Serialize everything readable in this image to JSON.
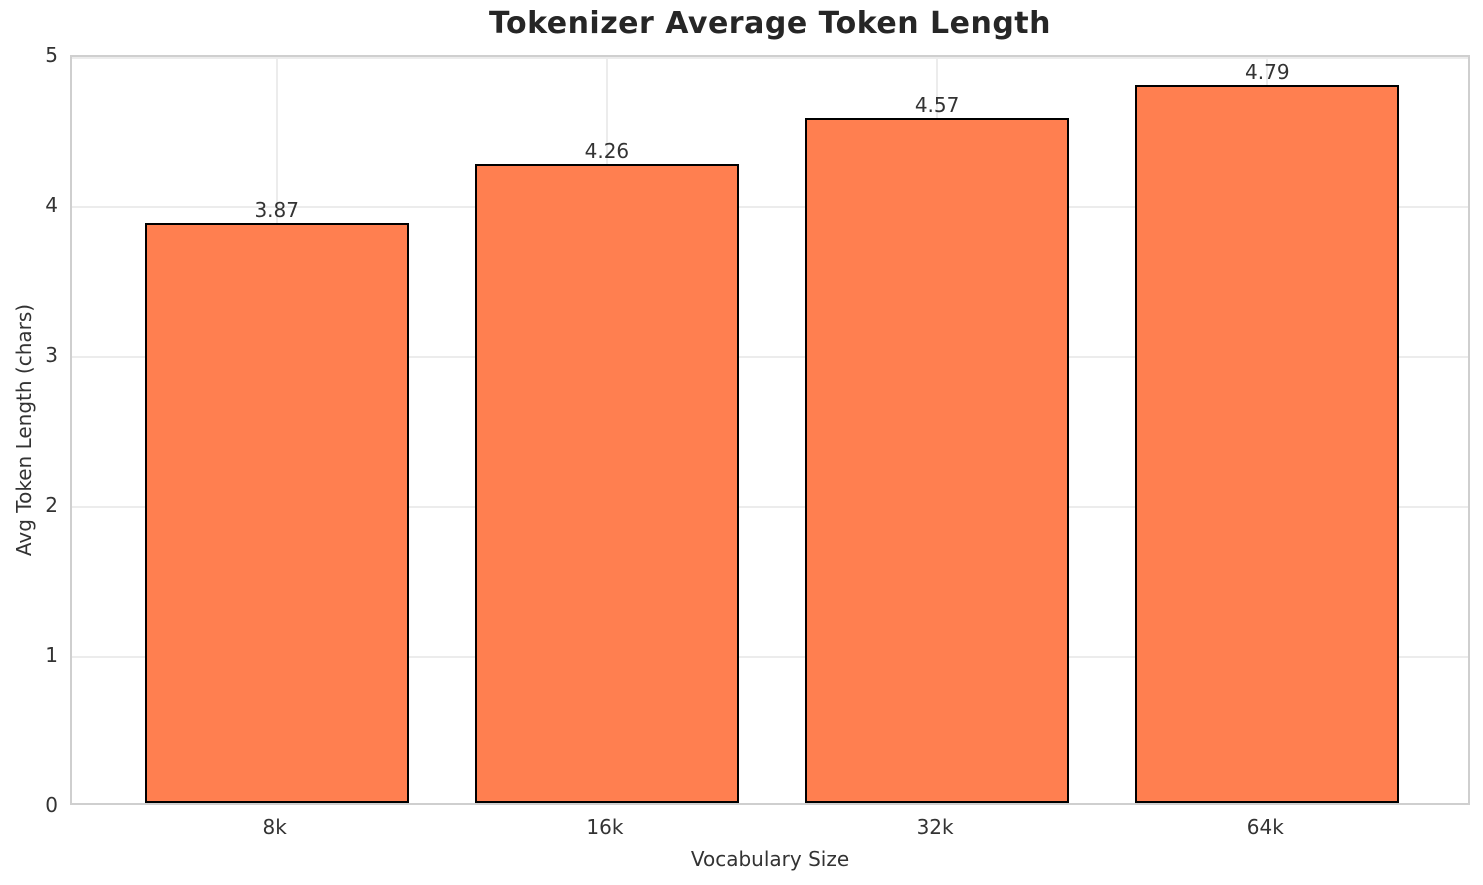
{
  "chart_data": {
    "type": "bar",
    "title": "Tokenizer Average Token Length",
    "xlabel": "Vocabulary Size",
    "ylabel": "Avg Token Length (chars)",
    "categories": [
      "8k",
      "16k",
      "32k",
      "64k"
    ],
    "values": [
      3.87,
      4.26,
      4.57,
      4.79
    ],
    "value_labels": [
      "3.87",
      "4.26",
      "4.57",
      "4.79"
    ],
    "ylim": [
      0,
      5
    ],
    "yticks": [
      0,
      1,
      2,
      3,
      4,
      5
    ],
    "grid": true,
    "legend": "none",
    "colors": {
      "bar_fill": "#FF7F50",
      "bar_edge": "#000000",
      "grid_line": "#ececec",
      "spine": "#cfcfcf",
      "text": "#333333",
      "title_text": "#262626",
      "background": "#ffffff"
    }
  }
}
